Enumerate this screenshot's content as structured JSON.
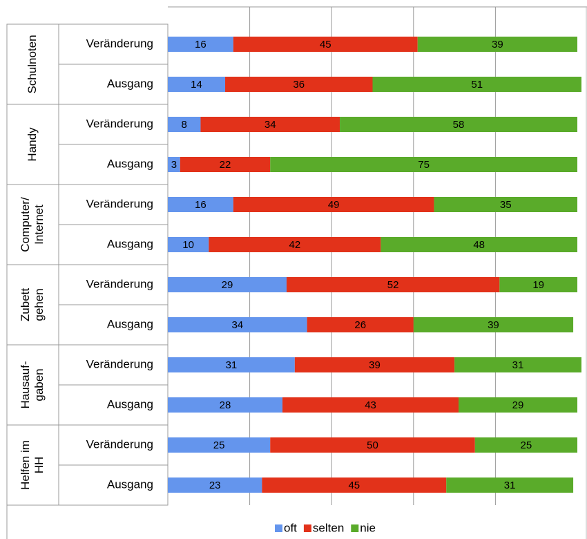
{
  "chart_data": {
    "type": "stacked-bar-horizontal",
    "groups": [
      [
        "Schulnoten"
      ],
      [
        "Handy"
      ],
      [
        "Computer/",
        "Internet"
      ],
      [
        "Zubett",
        "gehen"
      ],
      [
        "Hausauf-",
        "gaben"
      ],
      [
        "Helfen im",
        "HH"
      ]
    ],
    "categories": [
      "Veränderung",
      "Ausgang",
      "Veränderung",
      "Ausgang",
      "Veränderung",
      "Ausgang",
      "Veränderung",
      "Ausgang",
      "Veränderung",
      "Ausgang",
      "Veränderung",
      "Ausgang"
    ],
    "series": [
      {
        "name": "oft",
        "color": "#6495ed",
        "values": [
          16,
          14,
          8,
          3,
          16,
          10,
          29,
          34,
          31,
          28,
          25,
          23
        ]
      },
      {
        "name": "selten",
        "color": "#e2321a",
        "values": [
          45,
          36,
          34,
          22,
          49,
          42,
          52,
          26,
          39,
          43,
          50,
          45
        ]
      },
      {
        "name": "nie",
        "color": "#5aab2a",
        "values": [
          39,
          51,
          58,
          75,
          35,
          48,
          19,
          39,
          31,
          29,
          25,
          31
        ]
      }
    ],
    "xlim": [
      0,
      100
    ],
    "xticks": [
      20,
      40,
      60,
      80
    ],
    "grid": true,
    "legend": "bottom"
  }
}
